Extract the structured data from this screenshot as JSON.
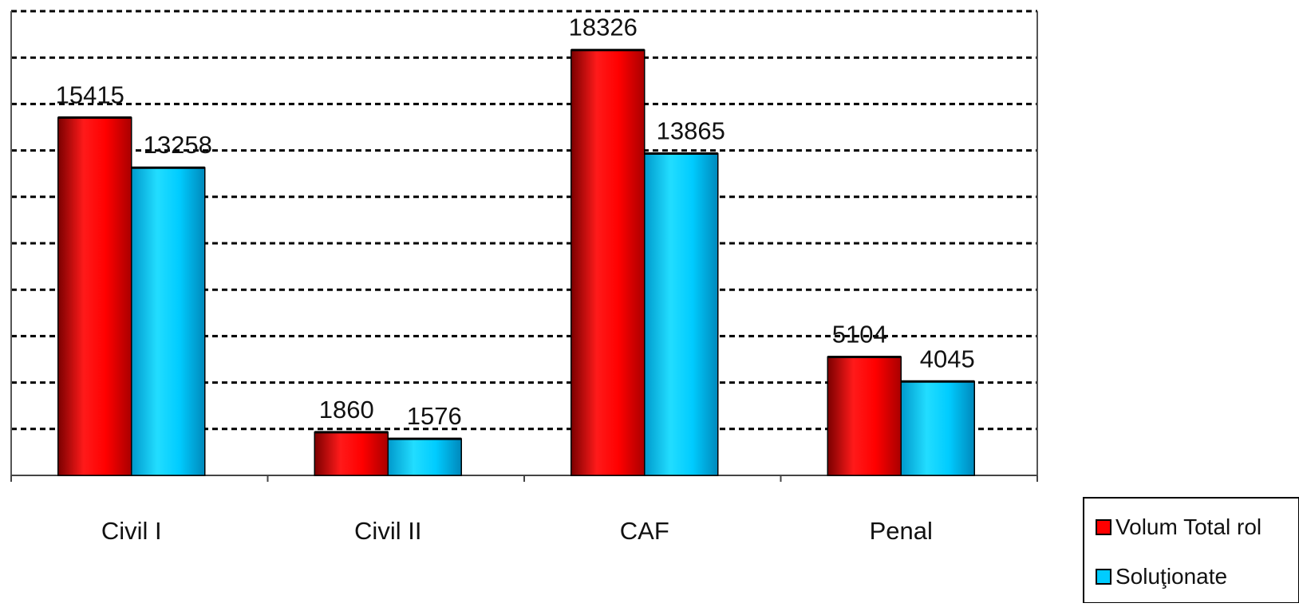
{
  "chart_data": {
    "type": "bar",
    "categories": [
      "Civil I",
      "Civil II",
      "CAF",
      "Penal"
    ],
    "series": [
      {
        "name": "Volum Total rol",
        "values": [
          15415,
          1860,
          18326,
          5104
        ],
        "color": "#ff0000"
      },
      {
        "name": "Soluţionate",
        "values": [
          13258,
          1576,
          13865,
          4045
        ],
        "color": "#00ccff"
      }
    ],
    "title": "",
    "xlabel": "",
    "ylabel": "",
    "ylim": [
      0,
      20000
    ],
    "grid": true,
    "legend": "bottom-right"
  }
}
